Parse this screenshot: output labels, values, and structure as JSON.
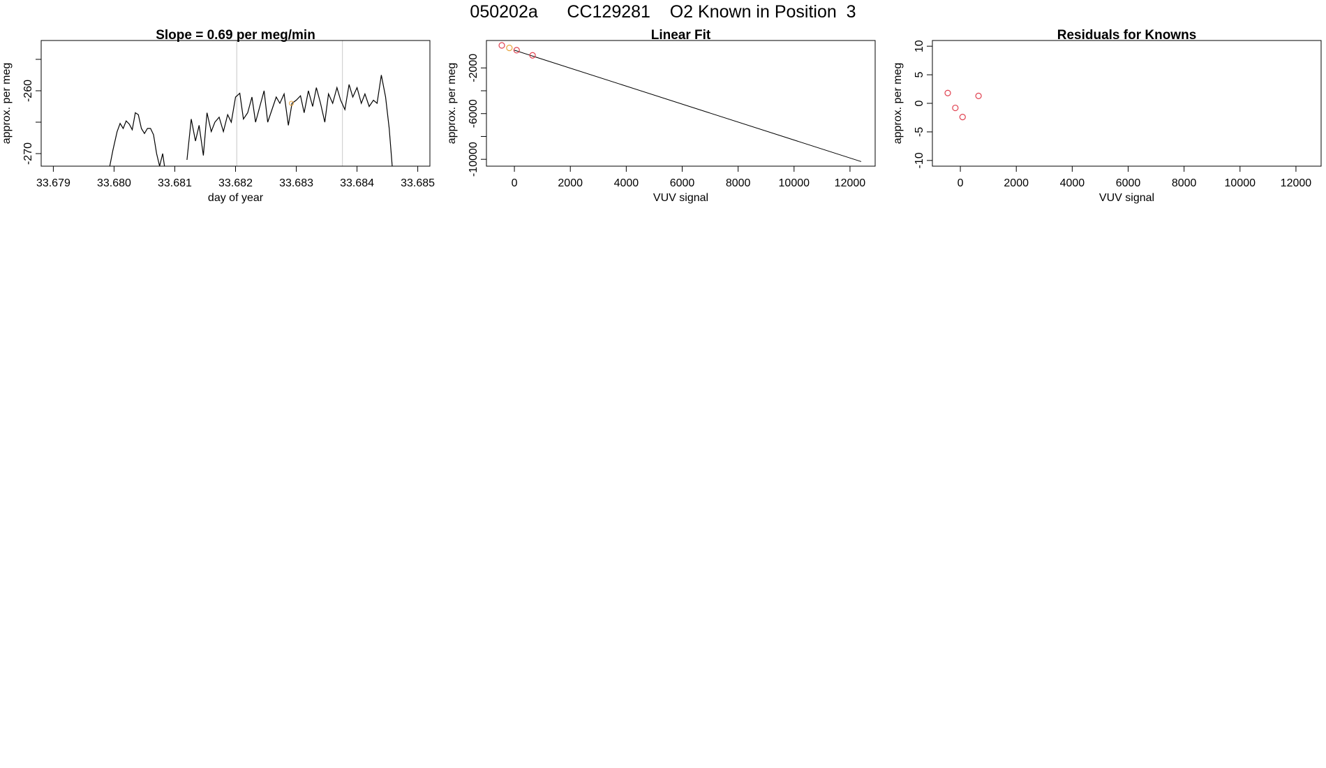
{
  "title": "050202a      CC129281    O2 Known in Position  3",
  "colors": {
    "line": "#000000",
    "frame": "#000000",
    "points": "#e0404f",
    "points_alt": "#e8a33c",
    "vlines": "#c8c8c8"
  },
  "chart_data": [
    {
      "type": "line",
      "title": "Slope =  0.69  per meg/min",
      "xlabel": "day of year",
      "ylabel": "approx. per meg",
      "xlim": [
        33.6788,
        33.6852
      ],
      "ylim": [
        -272,
        -252
      ],
      "xticks": [
        33.679,
        33.68,
        33.681,
        33.682,
        33.683,
        33.684,
        33.685
      ],
      "xtick_labels": [
        "33.679",
        "33.680",
        "33.681",
        "33.682",
        "33.683",
        "33.684",
        "33.685"
      ],
      "yticks": [
        -270,
        -265,
        -260,
        -255
      ],
      "ytick_labels": [
        "-270",
        "",
        "-260",
        ""
      ],
      "vlines": [
        33.68202,
        33.68376
      ],
      "series": [
        {
          "x": [
            33.67993,
            33.67998,
            33.68005,
            33.6801,
            33.68015,
            33.6802,
            33.68025,
            33.6803,
            33.68035,
            33.6804,
            33.68045,
            33.6805,
            33.68055,
            33.6806,
            33.68065,
            33.6807,
            33.68075,
            33.6808,
            33.68083
          ],
          "y": [
            -272,
            -269.5,
            -266.5,
            -265.2,
            -266.0,
            -264.8,
            -265.3,
            -266.2,
            -263.5,
            -263.8,
            -266.0,
            -266.8,
            -266.0,
            -266.0,
            -267.0,
            -270.0,
            -272.0,
            -270.0,
            -272.0
          ]
        },
        {
          "x": [
            33.6812,
            33.68127,
            33.68134,
            33.6814,
            33.68147,
            33.68153,
            33.6816,
            33.68166,
            33.68173,
            33.6818,
            33.68187,
            33.68193,
            33.682,
            33.68207,
            33.68213,
            33.6822,
            33.68227,
            33.68233,
            33.6824,
            33.68247,
            33.68253,
            33.6826,
            33.68267,
            33.68273,
            33.6828,
            33.68287,
            33.68293,
            33.683,
            33.68307,
            33.68313,
            33.6832,
            33.68327,
            33.68333,
            33.6834,
            33.68347,
            33.68353,
            33.6836,
            33.68367,
            33.68373,
            33.6838,
            33.68387,
            33.68393,
            33.684,
            33.68407,
            33.68413,
            33.6842,
            33.68427,
            33.68433,
            33.6844,
            33.68447,
            33.68453,
            33.68458
          ],
          "y": [
            -271.0,
            -264.5,
            -268.0,
            -265.5,
            -270.3,
            -263.5,
            -266.5,
            -265.0,
            -264.2,
            -266.5,
            -263.8,
            -265.0,
            -261.0,
            -260.4,
            -264.5,
            -263.5,
            -261.0,
            -265.0,
            -262.5,
            -260.0,
            -265.0,
            -263.0,
            -261.0,
            -262.0,
            -260.5,
            -265.5,
            -262.0,
            -261.5,
            -260.8,
            -263.5,
            -260.0,
            -262.5,
            -259.5,
            -262.0,
            -265.0,
            -260.5,
            -262.0,
            -259.5,
            -261.5,
            -263.0,
            -259.0,
            -261.0,
            -259.5,
            -262.0,
            -260.5,
            -262.5,
            -261.5,
            -262.0,
            -257.5,
            -261.0,
            -266.0,
            -272.0
          ]
        }
      ],
      "marker": {
        "x": 33.68292,
        "y": -262.0
      }
    },
    {
      "type": "scatter",
      "title": "Linear Fit",
      "xlabel": "VUV signal",
      "ylabel": "approx. per meg",
      "xlim": [
        -1000,
        12900
      ],
      "ylim": [
        -10600,
        400
      ],
      "xticks": [
        0,
        2000,
        4000,
        6000,
        8000,
        10000,
        12000
      ],
      "xtick_labels": [
        "0",
        "2000",
        "4000",
        "6000",
        "8000",
        "10000",
        "12000"
      ],
      "yticks": [
        -10000,
        -8000,
        -6000,
        -4000,
        -2000
      ],
      "ytick_labels": [
        "-10000",
        "",
        "-6000",
        "",
        "-2000"
      ],
      "points": {
        "x": [
          -450,
          -180,
          80,
          650
        ],
        "y": [
          -30,
          -250,
          -450,
          -900
        ]
      },
      "fit_line": {
        "x": [
          0,
          12400
        ],
        "y": [
          -450,
          -10200
        ]
      }
    },
    {
      "type": "scatter",
      "title": "Residuals for Knowns",
      "xlabel": "VUV signal",
      "ylabel": "approx. per meg",
      "xlim": [
        -1000,
        12900
      ],
      "ylim": [
        -11,
        11
      ],
      "xticks": [
        0,
        2000,
        4000,
        6000,
        8000,
        10000,
        12000
      ],
      "xtick_labels": [
        "0",
        "2000",
        "4000",
        "6000",
        "8000",
        "10000",
        "12000"
      ],
      "yticks": [
        -10,
        -5,
        0,
        5,
        10
      ],
      "ytick_labels": [
        "-10",
        "-5",
        "0",
        "5",
        "10"
      ],
      "points": {
        "x": [
          -450,
          -180,
          80,
          650
        ],
        "y": [
          1.8,
          -0.8,
          -2.4,
          1.3
        ]
      }
    }
  ]
}
